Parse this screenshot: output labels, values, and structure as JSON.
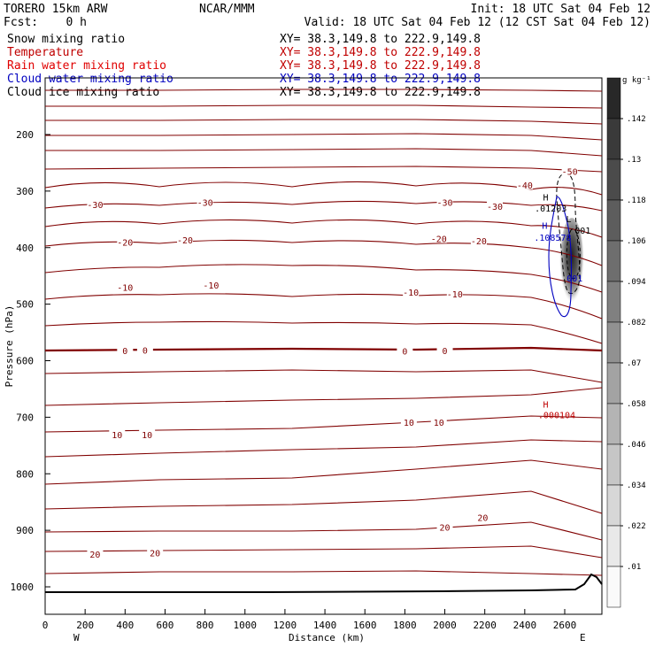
{
  "header": {
    "model": "TORERO  15km ARW",
    "center": "NCAR/MMM",
    "init": "Init: 18 UTC Sat 04 Feb 12",
    "fcst": "Fcst:    0 h",
    "valid": "Valid: 18 UTC Sat 04 Feb 12 (12 CST Sat 04 Feb 12)"
  },
  "legend": [
    {
      "label": "Snow mixing ratio",
      "xy": "XY=  38.3,149.8 to 222.9,149.8",
      "color": "#000000",
      "xy_color": "#000000"
    },
    {
      "label": "Temperature",
      "xy": "XY=  38.3,149.8 to 222.9,149.8",
      "color": "#c00000",
      "xy_color": "#c00000"
    },
    {
      "label": "Rain water mixing ratio",
      "xy": "XY=  38.3,149.8 to 222.9,149.8",
      "color": "#e00000",
      "xy_color": "#c00000"
    },
    {
      "label": "Cloud water mixing ratio",
      "xy": "XY=  38.3,149.8 to 222.9,149.8",
      "color": "#0000c0",
      "xy_color": "#0000c0"
    },
    {
      "label": "Cloud ice mixing ratio",
      "xy": "XY=  38.3,149.8 to 222.9,149.8",
      "color": "#000000",
      "xy_color": "#000000"
    }
  ],
  "chart_data": {
    "type": "contour",
    "xlabel": "Distance (km)",
    "ylabel": "Pressure (hPa)",
    "x_ticks": [
      "0",
      "200",
      "400",
      "600",
      "800",
      "1000",
      "1200",
      "1400",
      "1600",
      "1800",
      "2000",
      "2200",
      "2400",
      "2600"
    ],
    "x_tick_values": [
      0,
      200,
      400,
      600,
      800,
      1000,
      1200,
      1400,
      1600,
      1800,
      2000,
      2200,
      2400,
      2600
    ],
    "xlim": [
      0,
      2750
    ],
    "y_ticks": [
      "200",
      "300",
      "400",
      "500",
      "600",
      "700",
      "800",
      "900",
      "1000"
    ],
    "y_tick_values": [
      200,
      300,
      400,
      500,
      600,
      700,
      800,
      900,
      1000
    ],
    "ylim": [
      100,
      1045
    ],
    "left_end": "W",
    "right_end": "E",
    "colorbar": {
      "unit": "g kg⁻¹",
      "labels": [
        ".142",
        ".13",
        ".118",
        ".106",
        ".094",
        ".082",
        ".07",
        ".058",
        ".046",
        ".034",
        ".022",
        ".01"
      ],
      "values": [
        0.142,
        0.13,
        0.118,
        0.106,
        0.094,
        0.082,
        0.07,
        0.058,
        0.046,
        0.034,
        0.022,
        0.01
      ]
    },
    "temperature_labels": [
      {
        "text": "-50",
        "x": 2625,
        "p": 265
      },
      {
        "text": "-40",
        "x": 2400,
        "p": 289
      },
      {
        "text": "-30",
        "x": 250,
        "p": 324
      },
      {
        "text": "-30",
        "x": 800,
        "p": 320
      },
      {
        "text": "-30",
        "x": 2000,
        "p": 320
      },
      {
        "text": "-30",
        "x": 2250,
        "p": 327
      },
      {
        "text": "-20",
        "x": 400,
        "p": 390
      },
      {
        "text": "-20",
        "x": 700,
        "p": 386
      },
      {
        "text": "-20",
        "x": 1970,
        "p": 384
      },
      {
        "text": "-20",
        "x": 2170,
        "p": 388
      },
      {
        "text": "-10",
        "x": 400,
        "p": 470
      },
      {
        "text": "-10",
        "x": 830,
        "p": 466
      },
      {
        "text": "-10",
        "x": 1830,
        "p": 479
      },
      {
        "text": "-10",
        "x": 2050,
        "p": 482
      },
      {
        "text": "0",
        "x": 400,
        "p": 582
      },
      {
        "text": "0",
        "x": 500,
        "p": 581
      },
      {
        "text": "0",
        "x": 1800,
        "p": 583
      },
      {
        "text": "0",
        "x": 2000,
        "p": 582
      },
      {
        "text": "10",
        "x": 1820,
        "p": 709
      },
      {
        "text": "10",
        "x": 1970,
        "p": 709
      },
      {
        "text": "10",
        "x": 360,
        "p": 731
      },
      {
        "text": "10",
        "x": 510,
        "p": 731
      },
      {
        "text": "20",
        "x": 2000,
        "p": 894
      },
      {
        "text": "20",
        "x": 2190,
        "p": 877
      },
      {
        "text": "20",
        "x": 250,
        "p": 942
      },
      {
        "text": "20",
        "x": 550,
        "p": 940
      }
    ],
    "extrema": [
      {
        "text": "H",
        "x": 2505,
        "p": 317,
        "color": "#000000"
      },
      {
        "text": ".01203",
        "x": 2530,
        "p": 336,
        "color": "#000000"
      },
      {
        "text": "L",
        "x": 2620,
        "p": 355,
        "color": "#000000"
      },
      {
        "text": "H",
        "x": 2500,
        "p": 367,
        "color": "#0000c0"
      },
      {
        "text": ".108578",
        "x": 2540,
        "p": 388,
        "color": "#0000c0"
      },
      {
        "text": "001",
        "x": 2690,
        "p": 375,
        "color": "#000000"
      },
      {
        "text": "001",
        "x": 2650,
        "p": 460,
        "color": "#0000c0"
      },
      {
        "text": "H",
        "x": 2505,
        "p": 683,
        "color": "#c00000"
      },
      {
        "text": ".000104",
        "x": 2560,
        "p": 702,
        "color": "#c00000"
      }
    ]
  }
}
